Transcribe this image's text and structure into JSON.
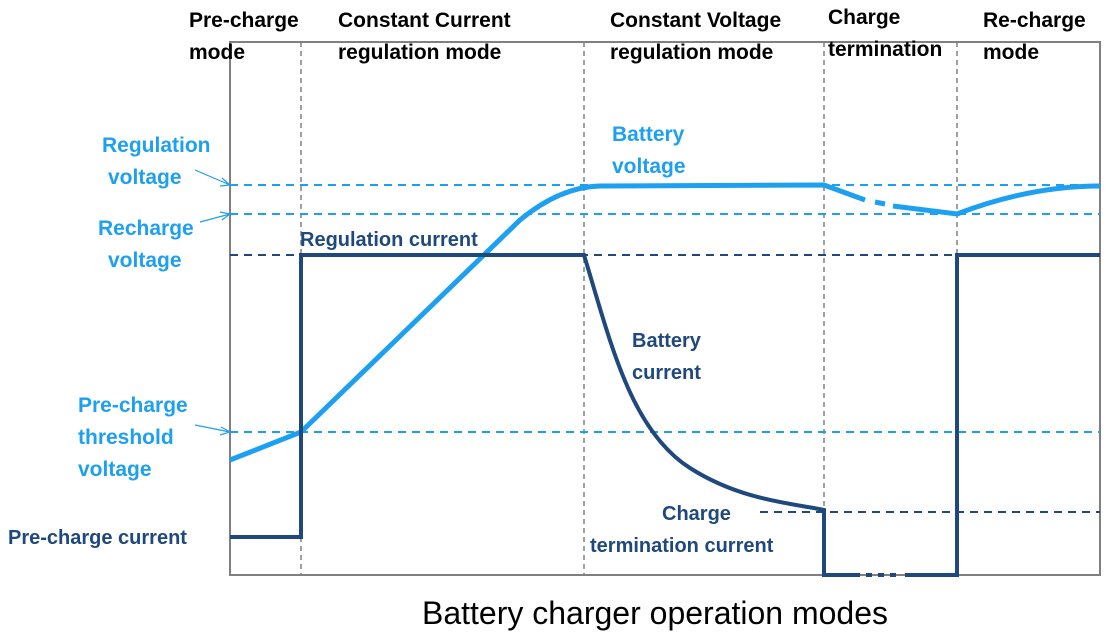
{
  "title": "Battery charger operation modes",
  "modes": [
    {
      "line1": "Pre-charge",
      "line2": "mode"
    },
    {
      "line1": "Constant Current",
      "line2": "regulation mode"
    },
    {
      "line1": "Constant Voltage",
      "line2": "regulation mode"
    },
    {
      "line1": "Charge",
      "line2": "termination"
    },
    {
      "line1": "Re-charge",
      "line2": "mode"
    }
  ],
  "levels": {
    "regulation_voltage": [
      "Regulation",
      "voltage"
    ],
    "recharge_voltage": [
      "Recharge",
      "voltage"
    ],
    "precharge_threshold": [
      "Pre-charge",
      "threshold",
      "voltage"
    ],
    "precharge_current": "Pre-charge current",
    "regulation_current": "Regulation current",
    "termination_current": [
      "Charge",
      "termination current"
    ]
  },
  "curves": {
    "battery_voltage": [
      "Battery",
      "voltage"
    ],
    "battery_current": [
      "Battery",
      "current"
    ]
  },
  "colors": {
    "voltage": "#1ea0f0",
    "current": "#1f497d",
    "grid": "#808080"
  }
}
